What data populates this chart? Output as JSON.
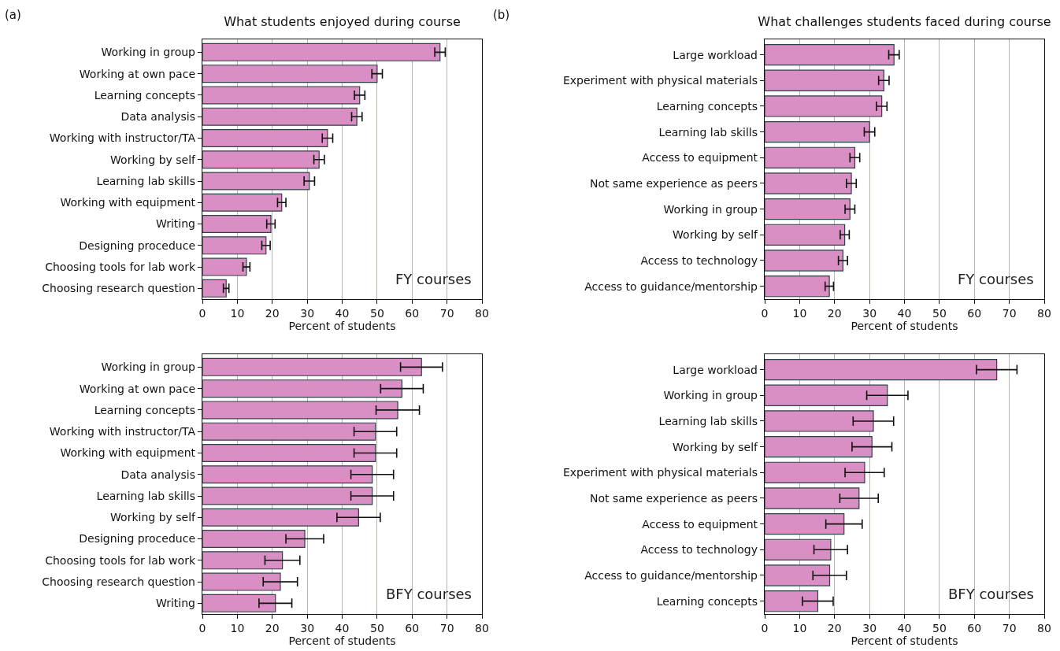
{
  "chart_data": [
    {
      "type": "bar",
      "orientation": "horizontal",
      "title": "What students enjoyed during course",
      "xlabel": "Percent of students",
      "annotations": [
        "(a)",
        "FY courses"
      ],
      "categories": [
        "Working in group",
        "Working at own pace",
        "Learning concepts",
        "Data analysis",
        "Working with instructor/TA",
        "Working by self",
        "Learning lab skills",
        "Working with equipment",
        "Writing",
        "Designing proceduce",
        "Choosing tools for lab work",
        "Choosing research question"
      ],
      "color": "#d98ec4",
      "values": [
        68,
        50,
        45,
        44.2,
        35.8,
        33.4,
        30.6,
        22.7,
        19.6,
        18.2,
        12.6,
        6.8
      ],
      "errors": [
        1.5,
        1.5,
        1.5,
        1.5,
        1.5,
        1.5,
        1.5,
        1.2,
        1.2,
        1.2,
        1,
        0.8
      ],
      "xlim": [
        0,
        80
      ],
      "xticks": [
        0,
        10,
        20,
        30,
        40,
        50,
        60,
        70,
        80
      ],
      "grid": "x"
    },
    {
      "type": "bar",
      "orientation": "horizontal",
      "title": "What challenges students faced during course",
      "xlabel": "Percent of students",
      "annotations": [
        "(b)",
        "FY courses"
      ],
      "categories": [
        "Large workload",
        "Experiment with physical materials",
        "Learning concepts",
        "Learning lab skills",
        "Access to equipment",
        "Not same experience as peers",
        "Working in group",
        "Working by self",
        "Access to technology",
        "Access to guidance/mentorship"
      ],
      "color": "#d98ec4",
      "values": [
        37,
        34.1,
        33.5,
        30,
        25.8,
        24.8,
        24.4,
        22.9,
        22.4,
        18.5
      ],
      "errors": [
        1.5,
        1.5,
        1.5,
        1.5,
        1.4,
        1.4,
        1.4,
        1.3,
        1.3,
        1.2
      ],
      "xlim": [
        0,
        80
      ],
      "xticks": [
        0,
        10,
        20,
        30,
        40,
        50,
        60,
        70,
        80
      ],
      "grid": "x"
    },
    {
      "type": "bar",
      "orientation": "horizontal",
      "xlabel": "Percent of students",
      "annotations": [
        "BFY courses"
      ],
      "categories": [
        "Working in group",
        "Working at own pace",
        "Learning concepts",
        "Working with instructor/TA",
        "Working with equipment",
        "Data analysis",
        "Learning lab skills",
        "Working by self",
        "Designing proceduce",
        "Choosing tools for lab work",
        "Choosing research question",
        "Writing"
      ],
      "color": "#d98ec4",
      "values": [
        62.7,
        57.1,
        55.9,
        49.5,
        49.5,
        48.6,
        48.6,
        44.7,
        29.3,
        22.9,
        22.3,
        20.9
      ],
      "errors": [
        6,
        6.1,
        6.2,
        6.1,
        6.1,
        6.1,
        6.1,
        6.2,
        5.4,
        5,
        4.9,
        4.7
      ],
      "xlim": [
        0,
        80
      ],
      "xticks": [
        0,
        10,
        20,
        30,
        40,
        50,
        60,
        70,
        80
      ],
      "grid": "x"
    },
    {
      "type": "bar",
      "orientation": "horizontal",
      "xlabel": "Percent of students",
      "annotations": [
        "BFY courses"
      ],
      "categories": [
        "Large workload",
        "Working in group",
        "Learning lab skills",
        "Working by self",
        "Experiment with physical materials",
        "Not same experience as peers",
        "Access to equipment",
        "Access to technology",
        "Access to guidance/mentorship",
        "Learning concepts"
      ],
      "color": "#d98ec4",
      "values": [
        66.4,
        35.1,
        31.1,
        30.7,
        28.6,
        27,
        22.7,
        18.9,
        18.6,
        15.2
      ],
      "errors": [
        5.8,
        5.9,
        5.8,
        5.7,
        5.6,
        5.5,
        5.2,
        4.8,
        4.8,
        4.4
      ],
      "xlim": [
        0,
        80
      ],
      "xticks": [
        0,
        10,
        20,
        30,
        40,
        50,
        60,
        70,
        80
      ],
      "grid": "x"
    }
  ]
}
